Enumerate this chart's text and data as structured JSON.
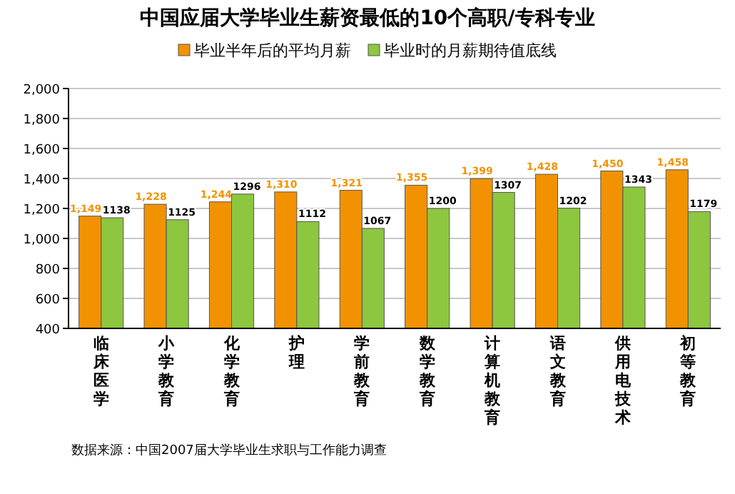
{
  "chart_data": {
    "type": "bar",
    "title": "中国应届大学毕业生薪资最低的10个高职/专科专业",
    "categories": [
      "临床医学",
      "小学教育",
      "化学教育",
      "护理",
      "学前教育",
      "数学教育",
      "计算机教育",
      "语文教育",
      "供用电技术",
      "初等教育"
    ],
    "series": [
      {
        "name": "毕业半年后的平均月薪",
        "color": "#f39200",
        "values": [
          1149,
          1228,
          1244,
          1310,
          1321,
          1355,
          1399,
          1428,
          1450,
          1458
        ],
        "value_labels": [
          "1,149",
          "1,228",
          "1,244",
          "1,310",
          "1,321",
          "1,355",
          "1,399",
          "1,428",
          "1,450",
          "1,458"
        ]
      },
      {
        "name": "毕业时的月薪期待值底线",
        "color": "#8dc63f",
        "values": [
          1138,
          1125,
          1296,
          1112,
          1067,
          1200,
          1307,
          1202,
          1343,
          1179
        ],
        "value_labels": [
          "1138",
          "1125",
          "1296",
          "1112",
          "1067",
          "1200",
          "1307",
          "1202",
          "1343",
          "1179"
        ]
      }
    ],
    "ylim": [
      400,
      2000
    ],
    "yticks": [
      {
        "value": 400,
        "label": "400"
      },
      {
        "value": 600,
        "label": "600"
      },
      {
        "value": 800,
        "label": "800"
      },
      {
        "value": 1000,
        "label": "1,000"
      },
      {
        "value": 1200,
        "label": "1,200"
      },
      {
        "value": 1400,
        "label": "1,400"
      },
      {
        "value": 1600,
        "label": "1,600"
      },
      {
        "value": 1800,
        "label": "1,800"
      },
      {
        "value": 2000,
        "label": "2,000"
      }
    ],
    "grid": "y",
    "legend": "top",
    "annotations": [
      "数据来源：中国2007届大学毕业生求职与工作能力调查"
    ]
  }
}
